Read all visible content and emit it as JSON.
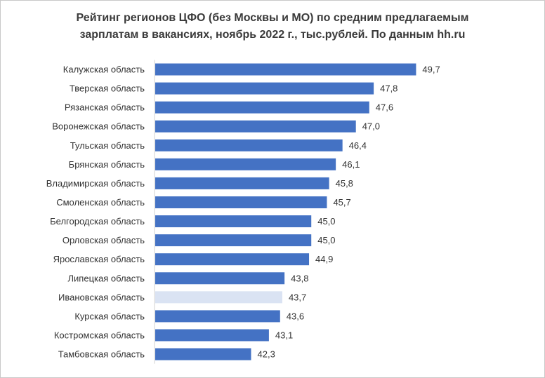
{
  "chart_data": {
    "type": "bar",
    "orientation": "horizontal",
    "title_lines": [
      "Рейтинг регионов ЦФО (без Москвы и МО) по средним предлагаемым",
      "зарплатам в вакансиях, ноябрь 2022 г., тыс.рублей. По данным hh.ru"
    ],
    "categories": [
      "Калужская область",
      "Тверская область",
      "Рязанская область",
      "Воронежская область",
      "Тульская область",
      "Брянская область",
      "Владимирская область",
      "Смоленская область",
      "Белгородская область",
      "Орловская область",
      "Ярославская область",
      "Липецкая область",
      "Ивановская область",
      "Курская область",
      "Костромская область",
      "Тамбовская область"
    ],
    "values": [
      49.7,
      47.8,
      47.6,
      47.0,
      46.4,
      46.1,
      45.8,
      45.7,
      45.0,
      45.0,
      44.9,
      43.8,
      43.7,
      43.6,
      43.1,
      42.3
    ],
    "value_labels": [
      "49,7",
      "47,8",
      "47,6",
      "47,0",
      "46,4",
      "46,1",
      "45,8",
      "45,7",
      "45,0",
      "45,0",
      "44,9",
      "43,8",
      "43,7",
      "43,6",
      "43,1",
      "42,3"
    ],
    "xlim": [
      38,
      50.6
    ],
    "bar_color": "#4472c4",
    "highlight_color": "#dae3f3",
    "highlight_index": 12,
    "grid": false,
    "legend": "none"
  }
}
